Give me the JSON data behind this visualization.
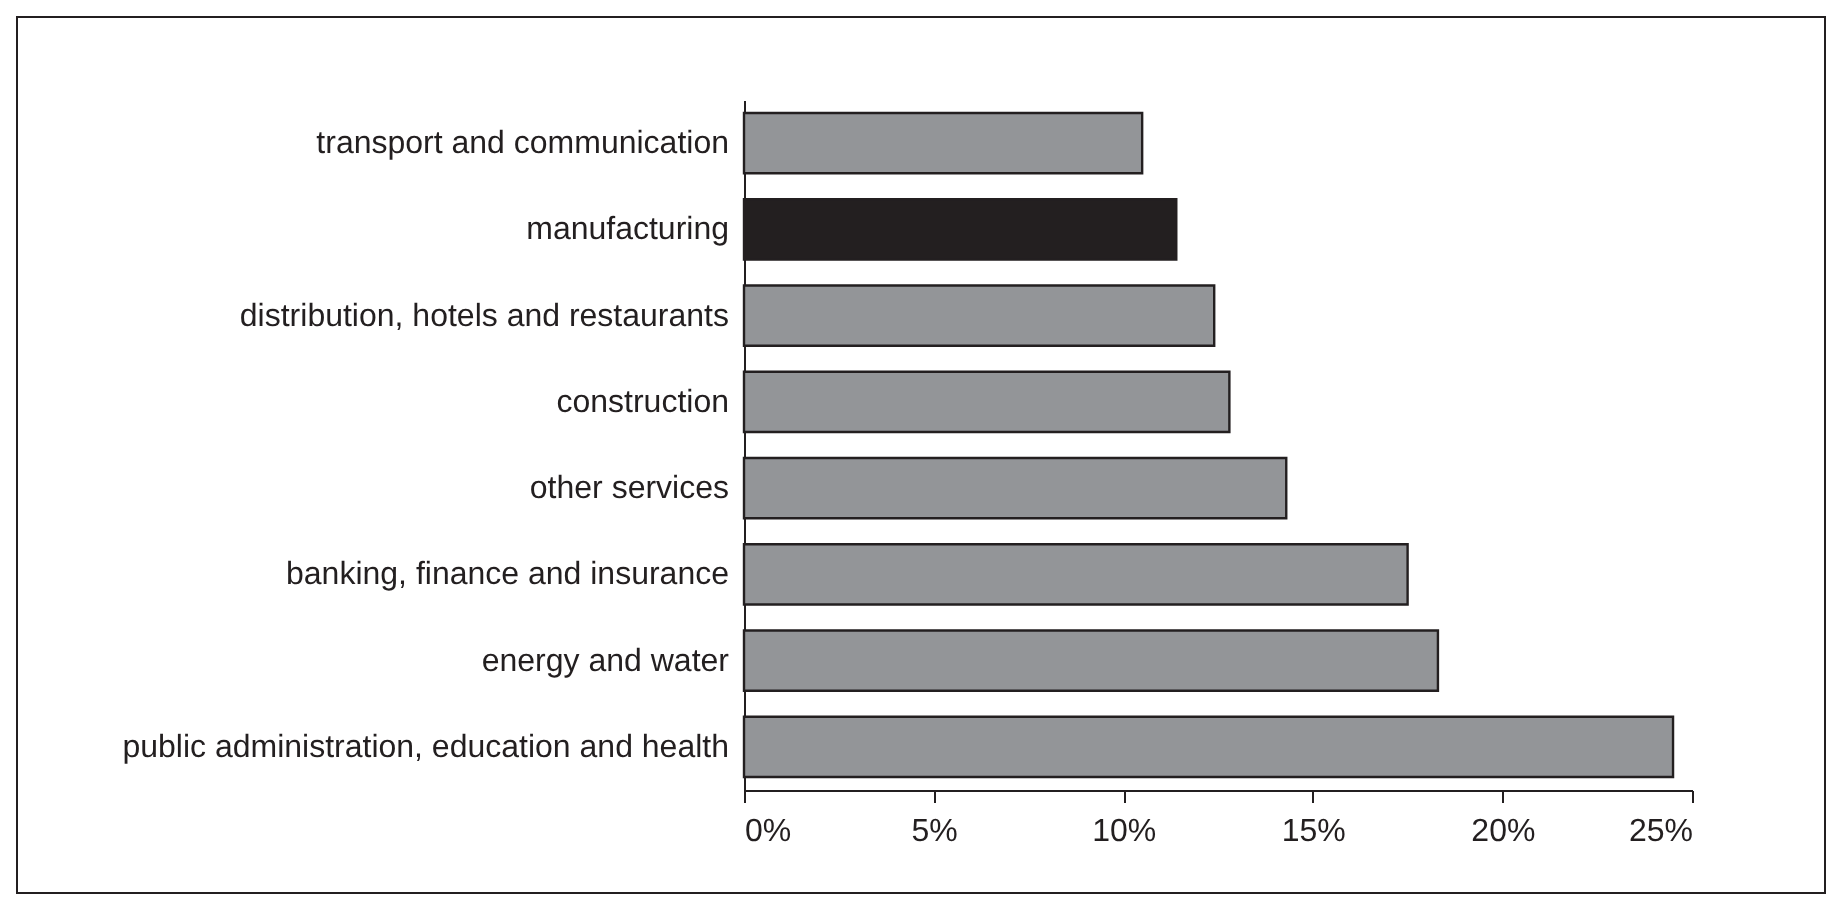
{
  "chart_data": {
    "type": "bar",
    "orientation": "horizontal",
    "categories": [
      "transport and communication",
      "manufacturing",
      "distribution, hotels and restaurants",
      "construction",
      "other services",
      "banking, finance and insurance",
      "energy and water",
      "public administration, education and health"
    ],
    "values": [
      10.5,
      11.4,
      12.4,
      12.8,
      14.3,
      17.5,
      18.3,
      24.5
    ],
    "colors": [
      "#939598",
      "#231f20",
      "#939598",
      "#939598",
      "#939598",
      "#939598",
      "#939598",
      "#939598"
    ],
    "xlim": [
      0,
      25
    ],
    "xticks": [
      {
        "value": 0,
        "label": "0%"
      },
      {
        "value": 5,
        "label": "5%"
      },
      {
        "value": 10,
        "label": "10%"
      },
      {
        "value": 15,
        "label": "15%"
      },
      {
        "value": 20,
        "label": "20%"
      },
      {
        "value": 25,
        "label": "25%"
      }
    ],
    "grid": false
  }
}
